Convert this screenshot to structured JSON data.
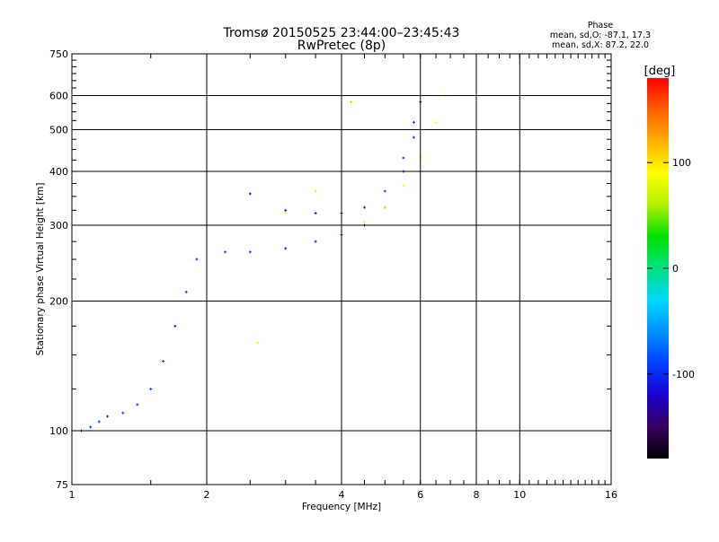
{
  "chart_data": {
    "type": "scatter",
    "title": "Tromsø 20150525 23:44:00–23:45:43",
    "subtitle": "RwPretec (8p)",
    "xlabel": "Frequency [MHz]",
    "ylabel": "Stationary phase Virtual Height [km]",
    "x_scale": "log",
    "y_scale": "log",
    "xlim": [
      1,
      16
    ],
    "ylim": [
      75,
      750
    ],
    "x_ticks": [
      1,
      2,
      4,
      6,
      8,
      10,
      16
    ],
    "y_ticks": [
      75,
      100,
      200,
      300,
      400,
      500,
      600,
      750
    ],
    "grid": true,
    "stats": {
      "title": "Phase",
      "line1": "mean, sd,O: -87.1, 17.3",
      "line2": "mean, sd,X:  87.2, 22.0"
    },
    "colorbar": {
      "label": "[deg]",
      "range": [
        -180,
        180
      ],
      "ticks": [
        100,
        0,
        -100
      ],
      "colors": [
        "#000000",
        "#3a0060",
        "#1a00d0",
        "#0040ff",
        "#0090ff",
        "#00d8ff",
        "#00e080",
        "#00e000",
        "#b0f000",
        "#ffff00",
        "#ffb000",
        "#ff6000",
        "#ff0000"
      ]
    },
    "series": [
      {
        "values": [
          {
            "x": 1.05,
            "y": 100,
            "phase": -95
          },
          {
            "x": 1.1,
            "y": 102,
            "phase": -100
          },
          {
            "x": 1.15,
            "y": 105,
            "phase": -95
          },
          {
            "x": 1.2,
            "y": 108,
            "phase": -100
          },
          {
            "x": 1.3,
            "y": 110,
            "phase": -95
          },
          {
            "x": 1.4,
            "y": 115,
            "phase": -100
          },
          {
            "x": 1.5,
            "y": 125,
            "phase": -95
          },
          {
            "x": 1.6,
            "y": 145,
            "phase": -100
          },
          {
            "x": 1.7,
            "y": 175,
            "phase": -105
          },
          {
            "x": 1.8,
            "y": 210,
            "phase": -100
          },
          {
            "x": 1.9,
            "y": 250,
            "phase": -100
          },
          {
            "x": 2.0,
            "y": 300,
            "phase": -95
          },
          {
            "x": 2.2,
            "y": 260,
            "phase": -95
          },
          {
            "x": 2.5,
            "y": 260,
            "phase": -100
          },
          {
            "x": 3.0,
            "y": 265,
            "phase": -110
          },
          {
            "x": 3.5,
            "y": 275,
            "phase": -110
          },
          {
            "x": 4.0,
            "y": 285,
            "phase": -105
          },
          {
            "x": 4.5,
            "y": 300,
            "phase": -100
          },
          {
            "x": 5.0,
            "y": 330,
            "phase": -100
          },
          {
            "x": 5.5,
            "y": 400,
            "phase": -100
          },
          {
            "x": 5.8,
            "y": 480,
            "phase": -95
          },
          {
            "x": 6.0,
            "y": 580,
            "phase": -100
          }
        ]
      },
      {
        "values": [
          {
            "x": 2.5,
            "y": 355,
            "phase": -110
          },
          {
            "x": 3.0,
            "y": 325,
            "phase": -115
          },
          {
            "x": 3.5,
            "y": 320,
            "phase": -115
          },
          {
            "x": 4.0,
            "y": 320,
            "phase": -110
          },
          {
            "x": 4.5,
            "y": 330,
            "phase": -105
          },
          {
            "x": 5.0,
            "y": 360,
            "phase": -100
          },
          {
            "x": 5.5,
            "y": 430,
            "phase": -100
          },
          {
            "x": 5.8,
            "y": 520,
            "phase": -100
          }
        ]
      },
      {
        "values": [
          {
            "x": 4.0,
            "y": 290,
            "phase": 85
          },
          {
            "x": 4.5,
            "y": 305,
            "phase": 90
          },
          {
            "x": 5.0,
            "y": 330,
            "phase": 95
          },
          {
            "x": 5.5,
            "y": 370,
            "phase": 90
          },
          {
            "x": 6.0,
            "y": 430,
            "phase": 85
          },
          {
            "x": 6.5,
            "y": 520,
            "phase": 90
          },
          {
            "x": 6.8,
            "y": 600,
            "phase": 85
          },
          {
            "x": 3.0,
            "y": 320,
            "phase": 95
          },
          {
            "x": 3.5,
            "y": 360,
            "phase": 100
          },
          {
            "x": 2.6,
            "y": 160,
            "phase": 95
          },
          {
            "x": 4.2,
            "y": 580,
            "phase": 110
          }
        ]
      }
    ]
  }
}
